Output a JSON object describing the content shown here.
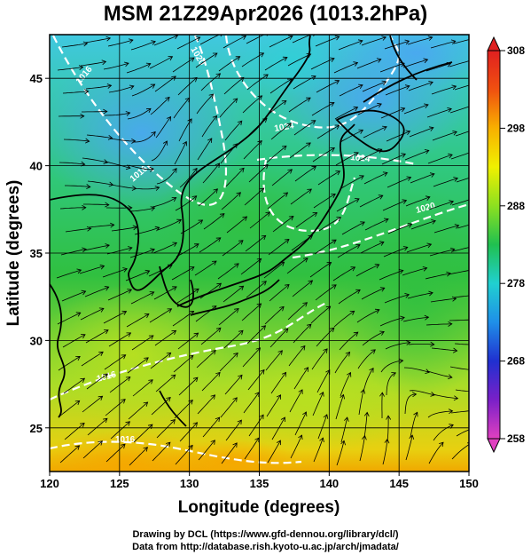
{
  "title": "MSM 21Z29Apr2026 (1013.2hPa)",
  "xlabel": "Longitude (degrees)",
  "ylabel": "Latitude  (degrees)",
  "credits": {
    "line1": "Drawing by DCL (https://www.gfd-dennou.org/library/dcl/)",
    "line2": "Data from http://database.rish.kyoto-u.ac.jp/arch/jmadata/"
  },
  "chart_data": {
    "type": "heatmap",
    "xlim": [
      120,
      150
    ],
    "ylim": [
      22.5,
      47.5
    ],
    "x_ticks": [
      120,
      125,
      130,
      135,
      140,
      145,
      150
    ],
    "y_ticks": [
      25,
      30,
      35,
      40,
      45
    ],
    "grid": true,
    "colorbar": {
      "min": 258,
      "max": 308,
      "ticks": [
        258,
        268,
        278,
        288,
        298,
        308
      ],
      "colors": [
        "#e040c0",
        "#7a20c8",
        "#2030d0",
        "#1f8fe8",
        "#20d0d0",
        "#20c050",
        "#8ce020",
        "#f0f000",
        "#f8b000",
        "#f05010",
        "#e02020"
      ]
    },
    "contour_labels": [
      "1016",
      "1020",
      "1016",
      "1024",
      "1024",
      "1020",
      "1016",
      "1016"
    ]
  }
}
